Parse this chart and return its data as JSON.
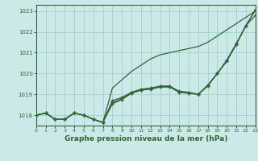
{
  "title": "Graphe pression niveau de la mer (hPa)",
  "bg_color": "#cce8e8",
  "grid_color": "#99cccc",
  "line_color": "#336633",
  "xlim": [
    0,
    23
  ],
  "ylim": [
    1017.5,
    1023.3
  ],
  "xticks": [
    0,
    1,
    2,
    3,
    4,
    5,
    6,
    7,
    8,
    9,
    10,
    11,
    12,
    13,
    14,
    15,
    16,
    17,
    18,
    19,
    20,
    21,
    22,
    23
  ],
  "yticks": [
    1018,
    1019,
    1020,
    1021,
    1022,
    1023
  ],
  "series_marked": [
    [
      1018.0,
      1018.1,
      1017.8,
      1017.8,
      1018.1,
      1018.0,
      1017.8,
      1017.65,
      1018.55,
      1018.75,
      1019.05,
      1019.2,
      1019.25,
      1019.35,
      1019.35,
      1019.1,
      1019.05,
      1019.0,
      1019.4,
      1020.0,
      1020.6,
      1021.4,
      1022.3,
      1022.8
    ],
    [
      1018.0,
      1018.1,
      1017.8,
      1017.8,
      1018.1,
      1018.0,
      1017.8,
      1017.65,
      1018.7,
      1018.85,
      1019.1,
      1019.25,
      1019.3,
      1019.4,
      1019.4,
      1019.15,
      1019.1,
      1019.0,
      1019.45,
      1020.0,
      1020.65,
      1021.45,
      1022.3,
      1023.05
    ],
    [
      1018.0,
      1018.1,
      1017.8,
      1017.8,
      1018.1,
      1018.0,
      1017.8,
      1017.65,
      1018.6,
      1018.8,
      1019.08,
      1019.22,
      1019.28,
      1019.38,
      1019.38,
      1019.12,
      1019.08,
      1019.0,
      1019.42,
      1020.0,
      1020.62,
      1021.42,
      1022.3,
      1023.05
    ]
  ],
  "series_smooth": [
    [
      1018.0,
      1018.1,
      1017.8,
      1017.8,
      1018.1,
      1018.0,
      1017.8,
      1017.65,
      1019.3,
      1019.7,
      1020.1,
      1020.4,
      1020.7,
      1020.9,
      1021.0,
      1021.1,
      1021.2,
      1021.3,
      1021.5,
      1021.8,
      1022.1,
      1022.4,
      1022.7,
      1023.0
    ]
  ]
}
